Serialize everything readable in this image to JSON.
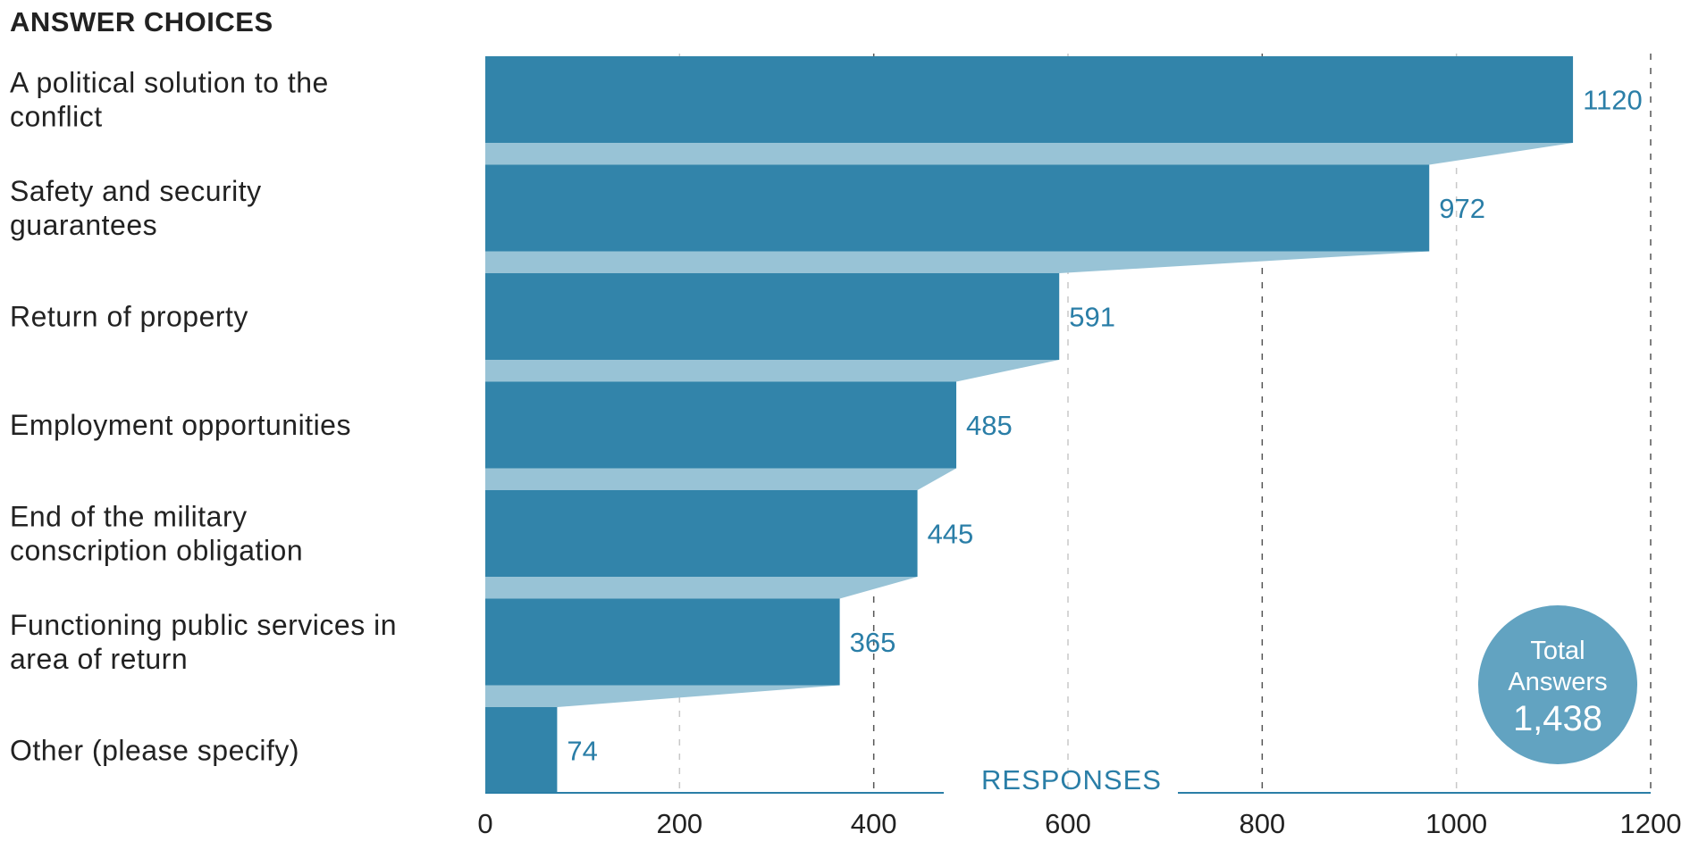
{
  "header": "ANSWER CHOICES",
  "chart_data": {
    "type": "bar",
    "orientation": "horizontal",
    "categories": [
      [
        "A political solution to the",
        "conflict"
      ],
      [
        "Safety and security",
        "guarantees"
      ],
      [
        "Return of property"
      ],
      [
        "Employment opportunities"
      ],
      [
        "End of the military",
        "conscription obligation"
      ],
      [
        "Functioning public services in",
        "area of return"
      ],
      [
        "Other (please specify)"
      ]
    ],
    "values": [
      1120,
      972,
      591,
      485,
      445,
      365,
      74
    ],
    "value_labels": [
      "1120",
      "972",
      "591",
      "485",
      "445",
      "365",
      "74"
    ],
    "xlabel": "RESPONSES",
    "xlim": [
      0,
      1200
    ],
    "xticks": [
      0,
      200,
      400,
      600,
      800,
      1000,
      1200
    ],
    "xtick_labels": [
      "0",
      "200",
      "400",
      "600",
      "800",
      "1000",
      "1200"
    ],
    "grid": "vertical dashed",
    "colors": {
      "bar": "#3284aa",
      "connector": "#98c3d6",
      "label": "#2a7ea7",
      "badge": "#62a3c1"
    }
  },
  "total_badge": {
    "line1": "Total",
    "line2": "Answers",
    "value": "1,438"
  }
}
